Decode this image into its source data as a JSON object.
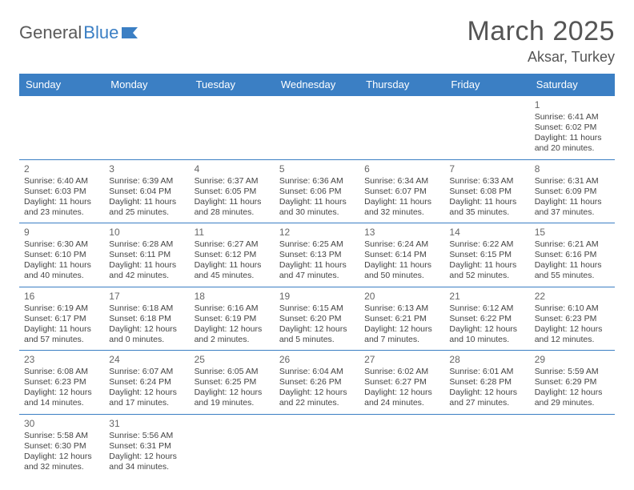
{
  "logo": {
    "text1": "General",
    "text2": "Blue"
  },
  "title": "March 2025",
  "location": "Aksar, Turkey",
  "colors": {
    "header_bg": "#3b7fc4",
    "header_fg": "#ffffff",
    "rule": "#3b7fc4",
    "text": "#444444"
  },
  "weekdays": [
    "Sunday",
    "Monday",
    "Tuesday",
    "Wednesday",
    "Thursday",
    "Friday",
    "Saturday"
  ],
  "weeks": [
    [
      null,
      null,
      null,
      null,
      null,
      null,
      {
        "n": "1",
        "sr": "Sunrise: 6:41 AM",
        "ss": "Sunset: 6:02 PM",
        "d1": "Daylight: 11 hours",
        "d2": "and 20 minutes."
      }
    ],
    [
      {
        "n": "2",
        "sr": "Sunrise: 6:40 AM",
        "ss": "Sunset: 6:03 PM",
        "d1": "Daylight: 11 hours",
        "d2": "and 23 minutes."
      },
      {
        "n": "3",
        "sr": "Sunrise: 6:39 AM",
        "ss": "Sunset: 6:04 PM",
        "d1": "Daylight: 11 hours",
        "d2": "and 25 minutes."
      },
      {
        "n": "4",
        "sr": "Sunrise: 6:37 AM",
        "ss": "Sunset: 6:05 PM",
        "d1": "Daylight: 11 hours",
        "d2": "and 28 minutes."
      },
      {
        "n": "5",
        "sr": "Sunrise: 6:36 AM",
        "ss": "Sunset: 6:06 PM",
        "d1": "Daylight: 11 hours",
        "d2": "and 30 minutes."
      },
      {
        "n": "6",
        "sr": "Sunrise: 6:34 AM",
        "ss": "Sunset: 6:07 PM",
        "d1": "Daylight: 11 hours",
        "d2": "and 32 minutes."
      },
      {
        "n": "7",
        "sr": "Sunrise: 6:33 AM",
        "ss": "Sunset: 6:08 PM",
        "d1": "Daylight: 11 hours",
        "d2": "and 35 minutes."
      },
      {
        "n": "8",
        "sr": "Sunrise: 6:31 AM",
        "ss": "Sunset: 6:09 PM",
        "d1": "Daylight: 11 hours",
        "d2": "and 37 minutes."
      }
    ],
    [
      {
        "n": "9",
        "sr": "Sunrise: 6:30 AM",
        "ss": "Sunset: 6:10 PM",
        "d1": "Daylight: 11 hours",
        "d2": "and 40 minutes."
      },
      {
        "n": "10",
        "sr": "Sunrise: 6:28 AM",
        "ss": "Sunset: 6:11 PM",
        "d1": "Daylight: 11 hours",
        "d2": "and 42 minutes."
      },
      {
        "n": "11",
        "sr": "Sunrise: 6:27 AM",
        "ss": "Sunset: 6:12 PM",
        "d1": "Daylight: 11 hours",
        "d2": "and 45 minutes."
      },
      {
        "n": "12",
        "sr": "Sunrise: 6:25 AM",
        "ss": "Sunset: 6:13 PM",
        "d1": "Daylight: 11 hours",
        "d2": "and 47 minutes."
      },
      {
        "n": "13",
        "sr": "Sunrise: 6:24 AM",
        "ss": "Sunset: 6:14 PM",
        "d1": "Daylight: 11 hours",
        "d2": "and 50 minutes."
      },
      {
        "n": "14",
        "sr": "Sunrise: 6:22 AM",
        "ss": "Sunset: 6:15 PM",
        "d1": "Daylight: 11 hours",
        "d2": "and 52 minutes."
      },
      {
        "n": "15",
        "sr": "Sunrise: 6:21 AM",
        "ss": "Sunset: 6:16 PM",
        "d1": "Daylight: 11 hours",
        "d2": "and 55 minutes."
      }
    ],
    [
      {
        "n": "16",
        "sr": "Sunrise: 6:19 AM",
        "ss": "Sunset: 6:17 PM",
        "d1": "Daylight: 11 hours",
        "d2": "and 57 minutes."
      },
      {
        "n": "17",
        "sr": "Sunrise: 6:18 AM",
        "ss": "Sunset: 6:18 PM",
        "d1": "Daylight: 12 hours",
        "d2": "and 0 minutes."
      },
      {
        "n": "18",
        "sr": "Sunrise: 6:16 AM",
        "ss": "Sunset: 6:19 PM",
        "d1": "Daylight: 12 hours",
        "d2": "and 2 minutes."
      },
      {
        "n": "19",
        "sr": "Sunrise: 6:15 AM",
        "ss": "Sunset: 6:20 PM",
        "d1": "Daylight: 12 hours",
        "d2": "and 5 minutes."
      },
      {
        "n": "20",
        "sr": "Sunrise: 6:13 AM",
        "ss": "Sunset: 6:21 PM",
        "d1": "Daylight: 12 hours",
        "d2": "and 7 minutes."
      },
      {
        "n": "21",
        "sr": "Sunrise: 6:12 AM",
        "ss": "Sunset: 6:22 PM",
        "d1": "Daylight: 12 hours",
        "d2": "and 10 minutes."
      },
      {
        "n": "22",
        "sr": "Sunrise: 6:10 AM",
        "ss": "Sunset: 6:23 PM",
        "d1": "Daylight: 12 hours",
        "d2": "and 12 minutes."
      }
    ],
    [
      {
        "n": "23",
        "sr": "Sunrise: 6:08 AM",
        "ss": "Sunset: 6:23 PM",
        "d1": "Daylight: 12 hours",
        "d2": "and 14 minutes."
      },
      {
        "n": "24",
        "sr": "Sunrise: 6:07 AM",
        "ss": "Sunset: 6:24 PM",
        "d1": "Daylight: 12 hours",
        "d2": "and 17 minutes."
      },
      {
        "n": "25",
        "sr": "Sunrise: 6:05 AM",
        "ss": "Sunset: 6:25 PM",
        "d1": "Daylight: 12 hours",
        "d2": "and 19 minutes."
      },
      {
        "n": "26",
        "sr": "Sunrise: 6:04 AM",
        "ss": "Sunset: 6:26 PM",
        "d1": "Daylight: 12 hours",
        "d2": "and 22 minutes."
      },
      {
        "n": "27",
        "sr": "Sunrise: 6:02 AM",
        "ss": "Sunset: 6:27 PM",
        "d1": "Daylight: 12 hours",
        "d2": "and 24 minutes."
      },
      {
        "n": "28",
        "sr": "Sunrise: 6:01 AM",
        "ss": "Sunset: 6:28 PM",
        "d1": "Daylight: 12 hours",
        "d2": "and 27 minutes."
      },
      {
        "n": "29",
        "sr": "Sunrise: 5:59 AM",
        "ss": "Sunset: 6:29 PM",
        "d1": "Daylight: 12 hours",
        "d2": "and 29 minutes."
      }
    ],
    [
      {
        "n": "30",
        "sr": "Sunrise: 5:58 AM",
        "ss": "Sunset: 6:30 PM",
        "d1": "Daylight: 12 hours",
        "d2": "and 32 minutes."
      },
      {
        "n": "31",
        "sr": "Sunrise: 5:56 AM",
        "ss": "Sunset: 6:31 PM",
        "d1": "Daylight: 12 hours",
        "d2": "and 34 minutes."
      },
      null,
      null,
      null,
      null,
      null
    ]
  ]
}
